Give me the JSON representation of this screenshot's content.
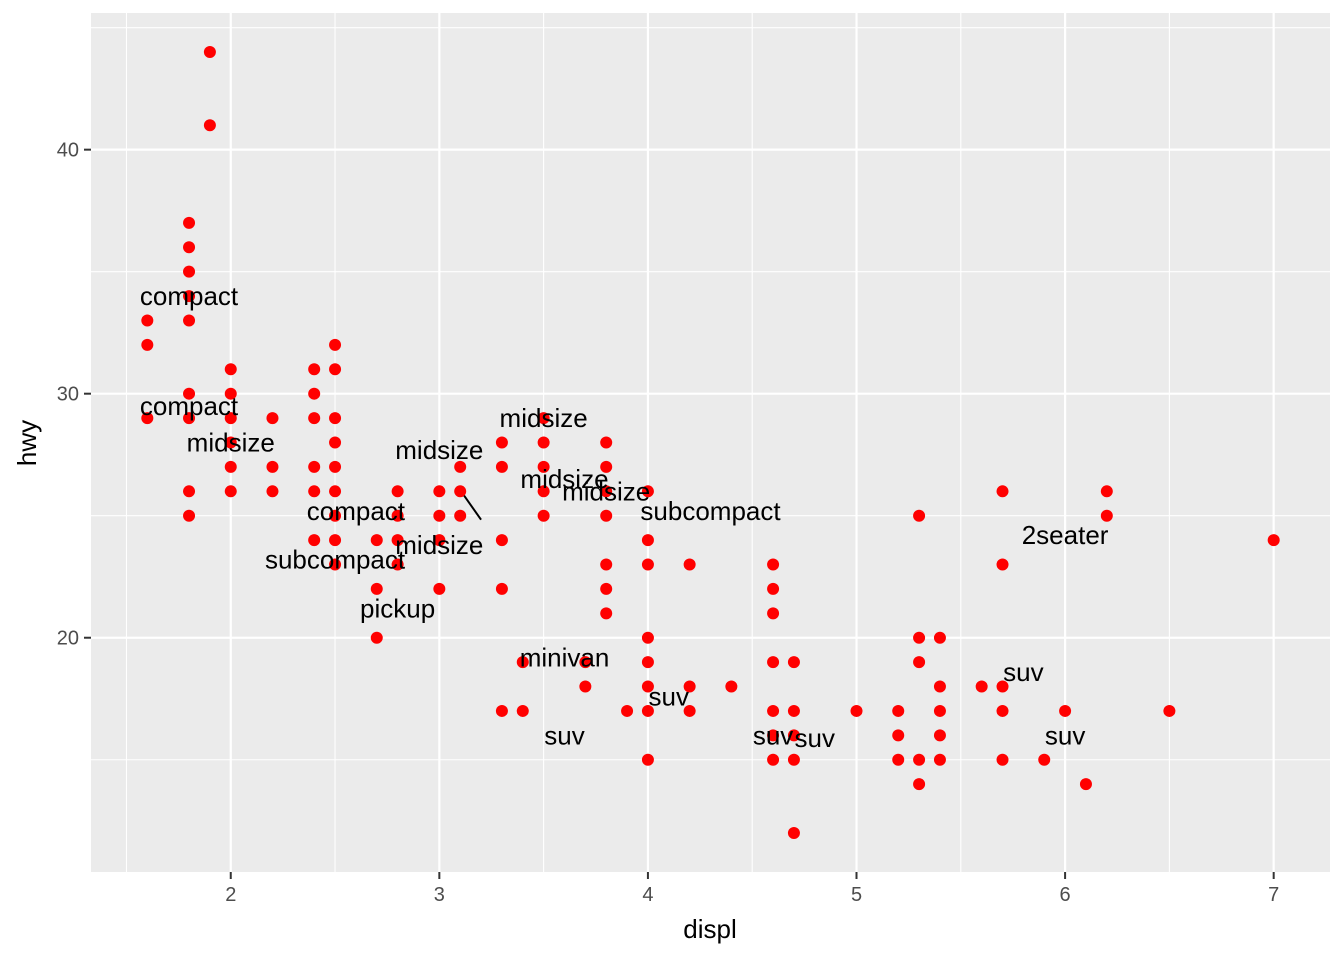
{
  "chart_data": {
    "type": "scatter",
    "title": "",
    "xlabel": "displ",
    "ylabel": "hwy",
    "xlim": [
      1.33,
      7.27
    ],
    "ylim": [
      10.4,
      45.6
    ],
    "x_ticks": [
      2,
      3,
      4,
      5,
      6,
      7
    ],
    "y_ticks": [
      20,
      30,
      40
    ],
    "x_tick_labels": [
      "2",
      "3",
      "4",
      "5",
      "6",
      "7"
    ],
    "y_tick_labels": [
      "20",
      "30",
      "40"
    ],
    "grid": true,
    "legend": "none",
    "colors": {
      "panel_background": "#ebebeb",
      "gridline": "#ffffff",
      "point": "#ff0000",
      "text": "#000000",
      "tick_text": "#4d4d4d"
    },
    "series": [
      {
        "points": [
          [
            1.6,
            33
          ],
          [
            1.6,
            32
          ],
          [
            1.6,
            29
          ],
          [
            1.8,
            37
          ],
          [
            1.8,
            36
          ],
          [
            1.8,
            35
          ],
          [
            1.8,
            34
          ],
          [
            1.8,
            33
          ],
          [
            1.8,
            30
          ],
          [
            1.8,
            29
          ],
          [
            1.8,
            26
          ],
          [
            1.8,
            25
          ],
          [
            1.9,
            44
          ],
          [
            1.9,
            41
          ],
          [
            2.0,
            31
          ],
          [
            2.0,
            30
          ],
          [
            2.0,
            29
          ],
          [
            2.0,
            28
          ],
          [
            2.0,
            27
          ],
          [
            2.0,
            26
          ],
          [
            2.2,
            29
          ],
          [
            2.2,
            27
          ],
          [
            2.2,
            26
          ],
          [
            2.4,
            31
          ],
          [
            2.4,
            30
          ],
          [
            2.4,
            29
          ],
          [
            2.4,
            27
          ],
          [
            2.4,
            26
          ],
          [
            2.4,
            24
          ],
          [
            2.5,
            32
          ],
          [
            2.5,
            31
          ],
          [
            2.5,
            29
          ],
          [
            2.5,
            28
          ],
          [
            2.5,
            27
          ],
          [
            2.5,
            26
          ],
          [
            2.5,
            25
          ],
          [
            2.5,
            24
          ],
          [
            2.5,
            23
          ],
          [
            2.7,
            24
          ],
          [
            2.7,
            22
          ],
          [
            2.7,
            20
          ],
          [
            2.8,
            26
          ],
          [
            2.8,
            25
          ],
          [
            2.8,
            24
          ],
          [
            2.8,
            23
          ],
          [
            3.0,
            26
          ],
          [
            3.0,
            25
          ],
          [
            3.0,
            24
          ],
          [
            3.0,
            22
          ],
          [
            3.1,
            27
          ],
          [
            3.1,
            26
          ],
          [
            3.1,
            25
          ],
          [
            3.3,
            28
          ],
          [
            3.3,
            27
          ],
          [
            3.3,
            24
          ],
          [
            3.3,
            22
          ],
          [
            3.3,
            17
          ],
          [
            3.4,
            19
          ],
          [
            3.4,
            17
          ],
          [
            3.5,
            29
          ],
          [
            3.5,
            28
          ],
          [
            3.5,
            27
          ],
          [
            3.5,
            26
          ],
          [
            3.5,
            25
          ],
          [
            3.7,
            19
          ],
          [
            3.7,
            18
          ],
          [
            3.8,
            28
          ],
          [
            3.8,
            27
          ],
          [
            3.8,
            26
          ],
          [
            3.8,
            25
          ],
          [
            3.8,
            23
          ],
          [
            3.8,
            22
          ],
          [
            3.8,
            21
          ],
          [
            3.9,
            17
          ],
          [
            4.0,
            26
          ],
          [
            4.0,
            24
          ],
          [
            4.0,
            23
          ],
          [
            4.0,
            20
          ],
          [
            4.0,
            19
          ],
          [
            4.0,
            18
          ],
          [
            4.0,
            17
          ],
          [
            4.0,
            15
          ],
          [
            4.2,
            23
          ],
          [
            4.2,
            18
          ],
          [
            4.2,
            17
          ],
          [
            4.4,
            18
          ],
          [
            4.6,
            23
          ],
          [
            4.6,
            22
          ],
          [
            4.6,
            21
          ],
          [
            4.6,
            19
          ],
          [
            4.6,
            17
          ],
          [
            4.6,
            16
          ],
          [
            4.6,
            15
          ],
          [
            4.7,
            19
          ],
          [
            4.7,
            17
          ],
          [
            4.7,
            16
          ],
          [
            4.7,
            15
          ],
          [
            4.7,
            12
          ],
          [
            5.0,
            17
          ],
          [
            5.2,
            17
          ],
          [
            5.2,
            16
          ],
          [
            5.2,
            15
          ],
          [
            5.3,
            25
          ],
          [
            5.3,
            20
          ],
          [
            5.3,
            19
          ],
          [
            5.3,
            15
          ],
          [
            5.3,
            14
          ],
          [
            5.4,
            20
          ],
          [
            5.4,
            18
          ],
          [
            5.4,
            17
          ],
          [
            5.4,
            16
          ],
          [
            5.4,
            15
          ],
          [
            5.6,
            18
          ],
          [
            5.7,
            26
          ],
          [
            5.7,
            23
          ],
          [
            5.7,
            18
          ],
          [
            5.7,
            17
          ],
          [
            5.7,
            15
          ],
          [
            5.9,
            15
          ],
          [
            6.0,
            17
          ],
          [
            6.1,
            14
          ],
          [
            6.2,
            26
          ],
          [
            6.2,
            25
          ],
          [
            6.5,
            17
          ],
          [
            7.0,
            24
          ]
        ]
      }
    ],
    "annotations": [
      {
        "text": "compact",
        "x": 1.8,
        "y": 34
      },
      {
        "text": "compact",
        "x": 1.8,
        "y": 29.5
      },
      {
        "text": "midsize",
        "x": 2.0,
        "y": 28
      },
      {
        "text": "midsize",
        "x": 3.5,
        "y": 29
      },
      {
        "text": "midsize",
        "x": 3.0,
        "y": 27.7
      },
      {
        "text": "midsize",
        "x": 3.0,
        "y": 23.8
      },
      {
        "text": "midsize",
        "x": 3.6,
        "y": 26.5
      },
      {
        "text": "midsize",
        "x": 3.8,
        "y": 26
      },
      {
        "text": "compact",
        "x": 2.6,
        "y": 25.2
      },
      {
        "text": "subcompact",
        "x": 2.5,
        "y": 23.2
      },
      {
        "text": "subcompact",
        "x": 4.3,
        "y": 25.2
      },
      {
        "text": "pickup",
        "x": 2.8,
        "y": 21.2
      },
      {
        "text": "minivan",
        "x": 3.6,
        "y": 19.2
      },
      {
        "text": "2seater",
        "x": 6.0,
        "y": 24.2
      },
      {
        "text": "suv",
        "x": 3.6,
        "y": 16
      },
      {
        "text": "suv",
        "x": 4.6,
        "y": 16
      },
      {
        "text": "suv",
        "x": 4.8,
        "y": 15.9
      },
      {
        "text": "suv",
        "x": 4.1,
        "y": 17.6
      },
      {
        "text": "suv",
        "x": 5.8,
        "y": 18.6
      },
      {
        "text": "suv",
        "x": 6.0,
        "y": 16
      }
    ],
    "connectors": [
      {
        "from": [
          3.1,
          26
        ],
        "to": [
          3.2,
          25
        ]
      }
    ]
  }
}
